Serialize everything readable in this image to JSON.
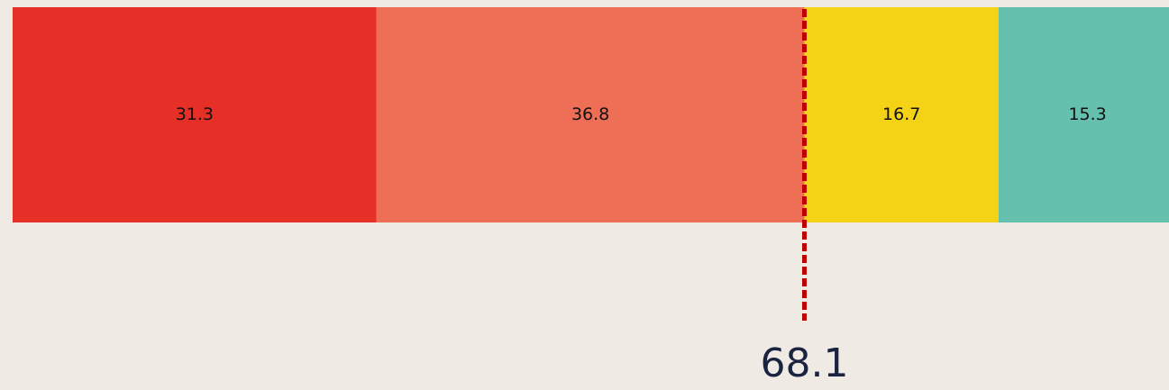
{
  "chart_data": {
    "type": "stacked-bar",
    "orientation": "horizontal",
    "series": [
      {
        "color": "#e63027",
        "values": [
          31.3
        ]
      },
      {
        "color": "#ee6e56",
        "values": [
          36.8
        ]
      },
      {
        "color": "#f4d216",
        "values": [
          16.7
        ]
      },
      {
        "color": "#65c1ae",
        "values": [
          15.3
        ]
      }
    ],
    "xlim": [
      0,
      100
    ],
    "marker": {
      "value": 68.1,
      "color": "#c00000"
    }
  }
}
